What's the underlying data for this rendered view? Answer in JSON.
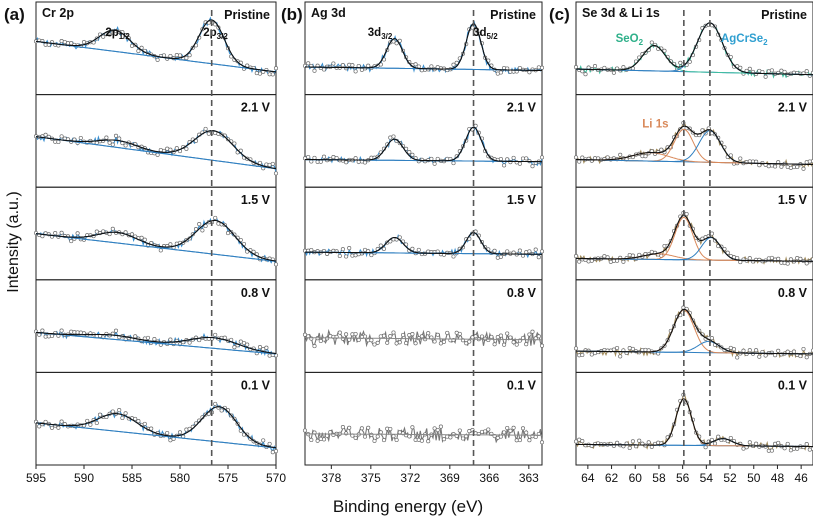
{
  "figure": {
    "ylabel": "Intensity (a.u.)",
    "xlabel": "Binding energy (eV)"
  },
  "colors": {
    "data_marker": "#6b6b6b",
    "fit_blue": "#2f7fc0",
    "fit_black": "#111111",
    "fit_orange": "#d9895a",
    "fit_teal": "#3fbf9f",
    "fit_gray": "#8a8a8a",
    "noise_blue": "#3a8fd0",
    "noise_gray": "#777777",
    "noise_khaki": "#a08a5a",
    "label_orange": "#d9895a",
    "label_teal": "#2fb08a",
    "label_blue": "#2f9fd0",
    "dashed_line": "#555555"
  },
  "chart_data": [
    {
      "type": "line",
      "panel": "(a)",
      "title": "Cr 2p",
      "xlim": [
        595,
        570
      ],
      "xticks": [
        595,
        590,
        585,
        580,
        575,
        570
      ],
      "dashed_line_x": 576.7,
      "peak_labels": [
        {
          "base": "2p",
          "sub": "1/2",
          "x": 586.5
        },
        {
          "base": "2p",
          "sub": "3/2",
          "x": 576.3
        }
      ],
      "component_labels": [],
      "subpanels": [
        {
          "label": "Pristine",
          "noise": "blue",
          "slope": 0.25,
          "bg_start": 0.55,
          "bg_end": 0.18,
          "peaks": [
            {
              "center": 586.8,
              "height": 0.3,
              "width": 1.6
            },
            {
              "center": 576.7,
              "height": 0.62,
              "width": 1.3
            }
          ]
        },
        {
          "label": "2.1 V",
          "noise": "blue",
          "slope": 0.3,
          "bg_start": 0.5,
          "bg_end": 0.12,
          "peaks": [
            {
              "center": 586.5,
              "height": 0.1,
              "width": 2.0
            },
            {
              "center": 576.5,
              "height": 0.42,
              "width": 2.0
            }
          ]
        },
        {
          "label": "1.5 V",
          "noise": "blue",
          "slope": 0.25,
          "bg_start": 0.45,
          "bg_end": 0.12,
          "peaks": [
            {
              "center": 586.5,
              "height": 0.15,
              "width": 2.0
            },
            {
              "center": 576.3,
              "height": 0.48,
              "width": 2.0
            }
          ]
        },
        {
          "label": "0.8 V",
          "noise": "blue",
          "slope": 0.3,
          "bg_start": 0.35,
          "bg_end": 0.12,
          "peaks": [
            {
              "center": 587.0,
              "height": 0.06,
              "width": 2.5
            },
            {
              "center": 576.5,
              "height": 0.15,
              "width": 2.5
            }
          ]
        },
        {
          "label": "0.1 V",
          "noise": "blue",
          "slope": 0.22,
          "bg_start": 0.4,
          "bg_end": 0.1,
          "peaks": [
            {
              "center": 586.5,
              "height": 0.25,
              "width": 2.0
            },
            {
              "center": 575.9,
              "height": 0.5,
              "width": 1.8
            }
          ]
        }
      ]
    },
    {
      "type": "line",
      "panel": "(b)",
      "title": "Ag 3d",
      "xlim": [
        380,
        362
      ],
      "xticks": [
        378,
        375,
        372,
        369,
        366,
        363
      ],
      "dashed_line_x": 367.2,
      "peak_labels": [
        {
          "base": "3d",
          "sub": "3/2",
          "x": 374.3
        },
        {
          "base": "3d",
          "sub": "5/2",
          "x": 366.3
        }
      ],
      "component_labels": [],
      "subpanels": [
        {
          "label": "Pristine",
          "noise": "blue",
          "slope": 0.0,
          "bg_start": 0.25,
          "bg_end": 0.2,
          "peaks": [
            {
              "center": 373.2,
              "height": 0.42,
              "width": 0.6
            },
            {
              "center": 367.2,
              "height": 0.65,
              "width": 0.55
            }
          ]
        },
        {
          "label": "2.1 V",
          "noise": "blue",
          "slope": 0.0,
          "bg_start": 0.25,
          "bg_end": 0.22,
          "peaks": [
            {
              "center": 373.2,
              "height": 0.3,
              "width": 0.65
            },
            {
              "center": 367.2,
              "height": 0.48,
              "width": 0.6
            }
          ]
        },
        {
          "label": "1.5 V",
          "noise": "blue",
          "slope": 0.0,
          "bg_start": 0.25,
          "bg_end": 0.22,
          "peaks": [
            {
              "center": 373.2,
              "height": 0.22,
              "width": 0.65
            },
            {
              "center": 367.2,
              "height": 0.3,
              "width": 0.55
            }
          ]
        },
        {
          "label": "0.8 V",
          "noise": "gray",
          "slope": 0.0,
          "bg_start": 0.35,
          "bg_end": 0.32,
          "peaks": []
        },
        {
          "label": "0.1 V",
          "noise": "gray",
          "slope": 0.0,
          "bg_start": 0.3,
          "bg_end": 0.28,
          "peaks": []
        }
      ]
    },
    {
      "type": "line",
      "panel": "(c)",
      "title": "Se 3d & Li 1s",
      "xlim": [
        65,
        45
      ],
      "xticks": [
        64,
        62,
        60,
        58,
        56,
        54,
        52,
        50,
        48,
        46
      ],
      "dashed_lines_x": [
        55.9,
        53.7
      ],
      "dashed_line_x": 55.9,
      "peak_labels": [],
      "component_labels": [
        {
          "base": "SeO",
          "sub": "2",
          "x": 60.5,
          "panel_index": 0,
          "color": "teal"
        },
        {
          "base": "AgCrSe",
          "sub": "2",
          "x": 50.8,
          "panel_index": 0,
          "color": "blue"
        },
        {
          "base": "Li 1s",
          "sub": "",
          "x": 58.3,
          "panel_index": 1,
          "color": "orange"
        }
      ],
      "subpanels": [
        {
          "label": "Pristine",
          "noise": "teal",
          "slope": 0.0,
          "bg_start": 0.22,
          "bg_end": 0.14,
          "peaks": [
            {
              "center": 58.4,
              "height": 0.36,
              "width": 0.95,
              "comp": "teal"
            },
            {
              "center": 53.7,
              "height": 0.7,
              "width": 1.05,
              "comp": "blue"
            }
          ]
        },
        {
          "label": "2.1 V",
          "noise": "khaki",
          "slope": 0.0,
          "bg_start": 0.25,
          "bg_end": 0.18,
          "peaks": [
            {
              "center": 58.7,
              "height": 0.12,
              "width": 1.5,
              "comp": "orange"
            },
            {
              "center": 55.9,
              "height": 0.46,
              "width": 0.8,
              "comp": "orange"
            },
            {
              "center": 53.7,
              "height": 0.45,
              "width": 0.9,
              "comp": "blue"
            }
          ]
        },
        {
          "label": "1.5 V",
          "noise": "khaki",
          "slope": 0.0,
          "bg_start": 0.16,
          "bg_end": 0.12,
          "peaks": [
            {
              "center": 58.0,
              "height": 0.08,
              "width": 1.3,
              "comp": "orange"
            },
            {
              "center": 55.9,
              "height": 0.6,
              "width": 0.75,
              "comp": "orange"
            },
            {
              "center": 53.6,
              "height": 0.32,
              "width": 0.8,
              "comp": "blue"
            }
          ]
        },
        {
          "label": "0.8 V",
          "noise": "khaki",
          "slope": 0.0,
          "bg_start": 0.16,
          "bg_end": 0.12,
          "peaks": [
            {
              "center": 55.9,
              "height": 0.6,
              "width": 0.85,
              "comp": "orange"
            },
            {
              "center": 53.8,
              "height": 0.16,
              "width": 0.9,
              "comp": "blue"
            }
          ]
        },
        {
          "label": "0.1 V",
          "noise": "khaki",
          "slope": 0.0,
          "bg_start": 0.15,
          "bg_end": 0.12,
          "peaks": [
            {
              "center": 55.9,
              "height": 0.66,
              "width": 0.65,
              "comp": "orange"
            },
            {
              "center": 52.6,
              "height": 0.1,
              "width": 0.8,
              "comp": "blue"
            }
          ]
        }
      ]
    }
  ]
}
